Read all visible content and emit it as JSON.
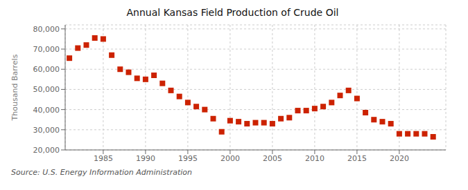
{
  "chart_data": {
    "type": "scatter",
    "title": "Annual Kansas Field Production of Crude Oil",
    "y_label": "Thousand Barrels",
    "annotation": "Source: U.S. Energy Information Administration",
    "x": [
      1981,
      1982,
      1983,
      1984,
      1985,
      1986,
      1987,
      1988,
      1989,
      1990,
      1991,
      1992,
      1993,
      1994,
      1995,
      1996,
      1997,
      1998,
      1999,
      2000,
      2001,
      2002,
      2003,
      2004,
      2005,
      2006,
      2007,
      2008,
      2009,
      2010,
      2011,
      2012,
      2013,
      2014,
      2015,
      2016,
      2017,
      2018,
      2019,
      2020,
      2021,
      2022,
      2023,
      2024
    ],
    "values": [
      65500,
      70500,
      72000,
      75500,
      75000,
      67000,
      60000,
      58500,
      55500,
      55000,
      57000,
      53000,
      49500,
      46500,
      43500,
      41500,
      40000,
      35500,
      29000,
      34500,
      34000,
      33000,
      33500,
      33500,
      33000,
      35500,
      36000,
      39500,
      39500,
      40500,
      41500,
      43500,
      47000,
      49500,
      45500,
      38500,
      35000,
      34000,
      33000,
      28000,
      28000,
      28000,
      28000,
      26500
    ],
    "color": "#cc2200",
    "marker": "square",
    "xlim": [
      1980.5,
      2025.5
    ],
    "xticks": [
      1985,
      1990,
      1995,
      2000,
      2005,
      2010,
      2015,
      2020
    ],
    "ylim": [
      20000,
      82000
    ],
    "yticks": [
      {
        "value": 20000,
        "label": "20,000"
      },
      {
        "value": 30000,
        "label": "30,000"
      },
      {
        "value": 40000,
        "label": "40,000"
      },
      {
        "value": 50000,
        "label": "50,000"
      },
      {
        "value": 60000,
        "label": "60,000"
      },
      {
        "value": 70000,
        "label": "70,000"
      },
      {
        "value": 80000,
        "label": "80,000"
      }
    ],
    "grid": true
  }
}
